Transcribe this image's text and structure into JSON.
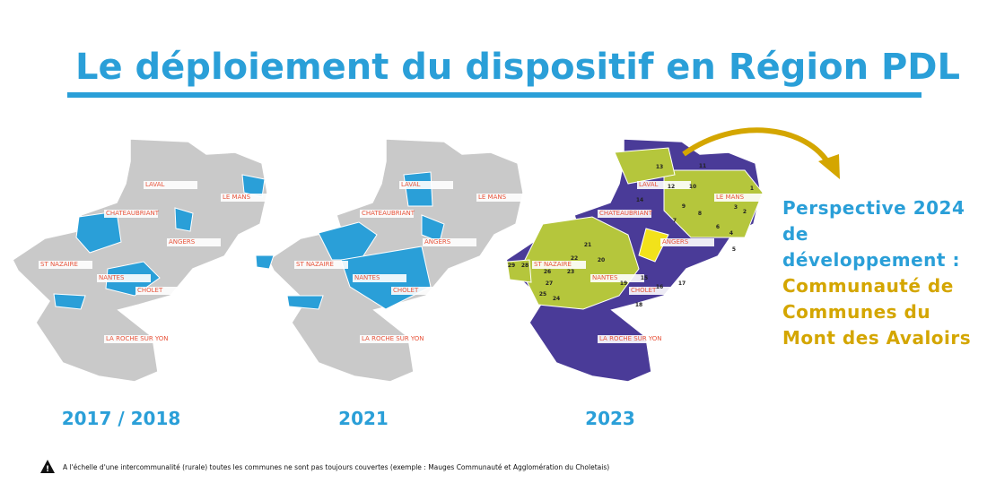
{
  "title": "Le déploiement du dispositif en Région PDL",
  "maps": [
    {
      "caption": "2017 / 2018"
    },
    {
      "caption": "2021"
    },
    {
      "caption": "2023"
    }
  ],
  "cities": [
    "LAVAL",
    "LE MANS",
    "CHATEAUBRIANT",
    "ANGERS",
    "ST NAZAIRE",
    "NANTES",
    "CHOLET",
    "LA ROCHE SUR YON"
  ],
  "map_2023_numbers": [
    13,
    12,
    11,
    10,
    14,
    9,
    3,
    7,
    8,
    6,
    4,
    2,
    1,
    5,
    21,
    22,
    20,
    23,
    29,
    28,
    26,
    27,
    25,
    24,
    19,
    15,
    16,
    17,
    18
  ],
  "perspective": {
    "intro": "Perspective 2024 de développement :",
    "highlight": "Communauté de Communes du Mont des Avaloirs"
  },
  "footnote": "A l'échelle d'une intercommunalité (rurale) toutes les communes ne sont pas toujours couvertes (exemple : Mauges Communauté et Agglomération du Choletais)"
}
